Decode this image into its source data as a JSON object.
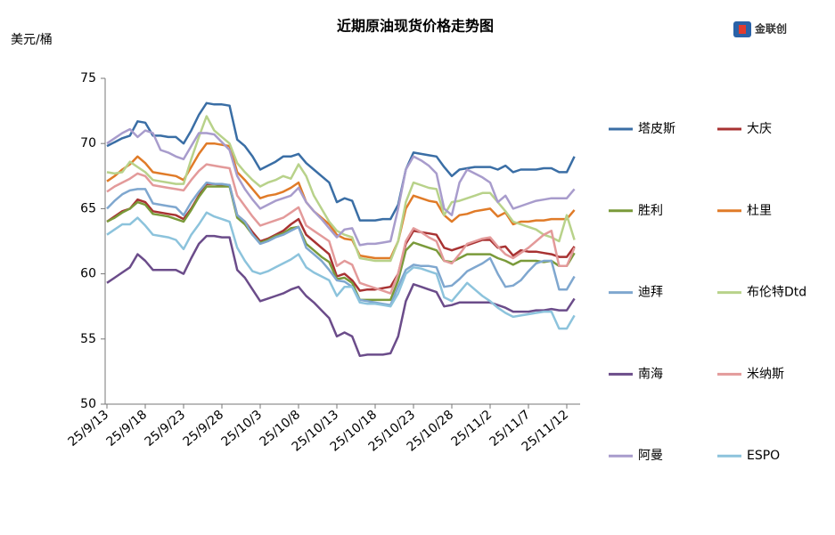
{
  "chart_data": {
    "type": "line",
    "title": "近期原油现货价格走势图",
    "y_label": "美元/桶",
    "logo": "金联创",
    "categories": [
      "25/9/13",
      null,
      null,
      null,
      null,
      "25/9/18",
      null,
      null,
      null,
      null,
      "25/9/23",
      null,
      null,
      null,
      null,
      "25/9/28",
      null,
      null,
      null,
      null,
      "25/10/3",
      null,
      null,
      null,
      null,
      "25/10/8",
      null,
      null,
      null,
      null,
      "25/10/13",
      null,
      null,
      null,
      null,
      "25/10/18",
      null,
      null,
      null,
      null,
      "25/10/23",
      null,
      null,
      null,
      null,
      "25/10/28",
      null,
      null,
      null,
      null,
      "25/11/2",
      null,
      null,
      null,
      null,
      "25/11/7",
      null,
      null,
      null,
      null,
      "25/11/12",
      null
    ],
    "ylim": [
      50,
      75
    ],
    "yticks": [
      50,
      55,
      60,
      65,
      70,
      75
    ],
    "grid": false,
    "legend": "right",
    "series": [
      {
        "name": "塔皮斯",
        "color": "#3a6ea5",
        "values": [
          69.8,
          70.1,
          70.4,
          70.6,
          71.7,
          71.6,
          70.6,
          70.6,
          70.5,
          70.5,
          70.0,
          71.0,
          72.2,
          73.1,
          73.0,
          73.0,
          72.9,
          70.3,
          69.8,
          69.0,
          68.0,
          68.3,
          68.6,
          69.0,
          69.0,
          69.2,
          68.5,
          68.0,
          67.5,
          67.0,
          65.5,
          65.8,
          65.6,
          64.1,
          64.1,
          64.1,
          64.2,
          64.2,
          65.3,
          68.0,
          69.3,
          69.2,
          69.1,
          69.0,
          68.2,
          67.5,
          68.0,
          68.1,
          68.2,
          68.2,
          68.2,
          68.0,
          68.3,
          67.8,
          68.0,
          68.0,
          68.0,
          68.1,
          68.1,
          67.8,
          67.8,
          69.0
        ]
      },
      {
        "name": "大庆",
        "color": "#a83232",
        "values": [
          64.0,
          64.4,
          64.8,
          65.0,
          65.7,
          65.5,
          64.8,
          64.7,
          64.6,
          64.5,
          64.2,
          65.0,
          66.0,
          66.9,
          66.9,
          66.8,
          66.8,
          64.5,
          64.0,
          63.2,
          62.5,
          62.7,
          63.0,
          63.3,
          63.8,
          64.2,
          63.0,
          62.5,
          62.0,
          61.5,
          59.8,
          60.0,
          59.5,
          58.7,
          58.8,
          58.8,
          58.9,
          59.0,
          60.0,
          62.3,
          63.3,
          63.2,
          63.1,
          63.0,
          62.0,
          61.8,
          62.0,
          62.2,
          62.4,
          62.6,
          62.6,
          62.0,
          62.1,
          61.4,
          61.8,
          61.7,
          61.7,
          61.6,
          61.5,
          61.3,
          61.3,
          62.1
        ]
      },
      {
        "name": "胜利",
        "color": "#7a9a3a",
        "values": [
          64.0,
          64.3,
          64.7,
          65.0,
          65.5,
          65.3,
          64.6,
          64.5,
          64.4,
          64.2,
          64.0,
          64.9,
          65.9,
          66.7,
          66.7,
          66.7,
          66.7,
          64.3,
          63.8,
          63.0,
          62.4,
          62.6,
          62.9,
          63.1,
          63.5,
          63.6,
          62.3,
          61.8,
          61.3,
          60.9,
          59.6,
          59.7,
          59.3,
          58.0,
          58.0,
          58.0,
          58.0,
          58.0,
          59.5,
          61.8,
          62.4,
          62.2,
          62.0,
          61.8,
          61.0,
          60.9,
          61.2,
          61.5,
          61.5,
          61.5,
          61.5,
          61.2,
          61.0,
          60.7,
          61.0,
          61.0,
          61.0,
          60.9,
          61.0,
          60.6,
          60.6,
          61.6
        ]
      },
      {
        "name": "杜里",
        "color": "#e07b28",
        "values": [
          67.1,
          67.5,
          68.0,
          68.4,
          69.0,
          68.5,
          67.8,
          67.7,
          67.6,
          67.5,
          67.2,
          68.2,
          69.2,
          70.0,
          70.0,
          69.9,
          69.8,
          67.8,
          67.2,
          66.5,
          65.8,
          66.0,
          66.1,
          66.3,
          66.6,
          67.0,
          65.5,
          64.8,
          64.3,
          63.8,
          63.0,
          62.7,
          62.6,
          61.4,
          61.3,
          61.2,
          61.2,
          61.2,
          62.5,
          65.0,
          66.0,
          65.8,
          65.6,
          65.5,
          64.5,
          64.0,
          64.5,
          64.6,
          64.8,
          64.9,
          65.0,
          64.4,
          64.7,
          63.8,
          64.0,
          64.0,
          64.1,
          64.1,
          64.2,
          64.2,
          64.2,
          64.9
        ]
      },
      {
        "name": "迪拜",
        "color": "#7fa7cf",
        "values": [
          65.0,
          65.6,
          66.1,
          66.4,
          66.5,
          66.5,
          65.4,
          65.3,
          65.2,
          65.1,
          64.5,
          65.5,
          66.3,
          67.0,
          66.9,
          66.9,
          66.8,
          64.5,
          64.0,
          63.0,
          62.3,
          62.5,
          62.8,
          63.0,
          63.3,
          63.6,
          62.0,
          61.5,
          61.0,
          60.3,
          59.5,
          59.4,
          59.0,
          58.0,
          57.9,
          57.8,
          57.7,
          57.6,
          59.0,
          60.3,
          60.7,
          60.6,
          60.6,
          60.5,
          59.0,
          59.1,
          59.6,
          60.2,
          60.5,
          60.8,
          61.2,
          60.0,
          59.0,
          59.1,
          59.5,
          60.2,
          60.8,
          61.0,
          61.0,
          58.8,
          58.8,
          59.8
        ]
      },
      {
        "name": "布伦特Dtd",
        "color": "#b8d28a",
        "values": [
          67.8,
          67.7,
          67.8,
          68.6,
          68.2,
          67.8,
          67.2,
          67.1,
          67.0,
          66.9,
          66.9,
          68.8,
          70.5,
          72.1,
          71.0,
          70.5,
          70.0,
          68.5,
          67.8,
          67.2,
          66.7,
          67.0,
          67.2,
          67.5,
          67.3,
          68.4,
          67.5,
          66.0,
          65.0,
          64.0,
          63.3,
          63.0,
          62.8,
          61.2,
          61.1,
          61.0,
          61.0,
          61.0,
          62.5,
          65.5,
          67.0,
          66.8,
          66.6,
          66.5,
          64.5,
          65.5,
          65.6,
          65.8,
          66.0,
          66.2,
          66.2,
          65.5,
          64.8,
          64.0,
          63.8,
          63.6,
          63.4,
          63.0,
          62.8,
          62.5,
          64.5,
          62.6
        ]
      },
      {
        "name": "南海",
        "color": "#6b4c8a",
        "values": [
          59.3,
          59.7,
          60.1,
          60.5,
          61.5,
          61.0,
          60.3,
          60.3,
          60.3,
          60.3,
          60.0,
          61.2,
          62.3,
          62.9,
          62.9,
          62.8,
          62.8,
          60.3,
          59.7,
          58.8,
          57.9,
          58.1,
          58.3,
          58.5,
          58.8,
          59.0,
          58.3,
          57.8,
          57.2,
          56.6,
          55.2,
          55.5,
          55.2,
          53.7,
          53.8,
          53.8,
          53.8,
          53.9,
          55.2,
          57.9,
          59.2,
          59.0,
          58.8,
          58.6,
          57.5,
          57.6,
          57.8,
          57.8,
          57.8,
          57.8,
          57.8,
          57.6,
          57.4,
          57.1,
          57.1,
          57.1,
          57.2,
          57.2,
          57.3,
          57.2,
          57.2,
          58.1
        ]
      },
      {
        "name": "米纳斯",
        "color": "#e39a9a",
        "values": [
          66.3,
          66.7,
          67.0,
          67.3,
          67.7,
          67.5,
          66.8,
          66.7,
          66.6,
          66.5,
          66.4,
          67.2,
          67.9,
          68.4,
          68.3,
          68.2,
          68.1,
          66.0,
          65.2,
          64.4,
          63.7,
          63.9,
          64.1,
          64.3,
          64.7,
          65.1,
          63.7,
          63.3,
          62.9,
          62.5,
          60.6,
          61.0,
          60.7,
          59.3,
          59.1,
          58.9,
          58.7,
          58.5,
          60.0,
          62.5,
          63.5,
          63.2,
          62.8,
          62.5,
          61.0,
          60.8,
          61.5,
          62.3,
          62.5,
          62.7,
          62.8,
          62.1,
          61.5,
          61.2,
          61.6,
          62.0,
          62.5,
          63.0,
          63.3,
          60.6,
          60.6,
          62.0
        ]
      },
      {
        "name": "阿曼",
        "color": "#a89ccc",
        "values": [
          70.0,
          70.4,
          70.8,
          71.1,
          70.5,
          71.0,
          70.8,
          69.5,
          69.3,
          69.0,
          68.8,
          69.8,
          70.8,
          70.8,
          70.7,
          70.1,
          69.5,
          67.5,
          66.5,
          65.7,
          65.0,
          65.3,
          65.6,
          65.8,
          66.0,
          66.6,
          65.5,
          64.8,
          64.2,
          63.5,
          62.8,
          63.4,
          63.5,
          62.2,
          62.3,
          62.3,
          62.4,
          62.5,
          65.0,
          68.0,
          69.0,
          68.7,
          68.3,
          67.7,
          65.0,
          64.5,
          67.0,
          68.0,
          67.7,
          67.4,
          67.0,
          65.5,
          66.0,
          65.0,
          65.2,
          65.4,
          65.6,
          65.7,
          65.8,
          65.8,
          65.8,
          66.5
        ]
      },
      {
        "name": "ESPO",
        "color": "#8cc3dc",
        "values": [
          63.0,
          63.4,
          63.8,
          63.8,
          64.3,
          63.7,
          63.0,
          62.9,
          62.8,
          62.6,
          61.9,
          63.0,
          63.8,
          64.7,
          64.4,
          64.2,
          64.0,
          62.0,
          61.0,
          60.2,
          60.0,
          60.2,
          60.5,
          60.8,
          61.1,
          61.5,
          60.5,
          60.1,
          59.8,
          59.5,
          58.3,
          59.0,
          59.0,
          57.8,
          57.7,
          57.7,
          57.6,
          57.5,
          58.5,
          60.0,
          60.5,
          60.4,
          60.2,
          60.0,
          58.2,
          57.9,
          58.6,
          59.3,
          58.8,
          58.3,
          57.9,
          57.4,
          57.0,
          56.7,
          56.8,
          56.9,
          57.0,
          57.1,
          57.1,
          55.8,
          55.8,
          56.8
        ]
      }
    ]
  }
}
